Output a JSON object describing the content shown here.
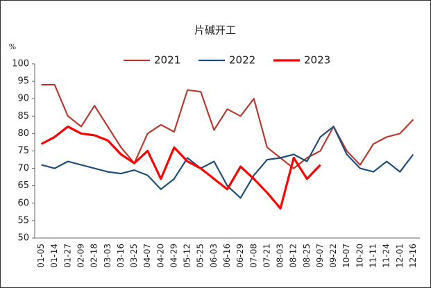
{
  "chart_data": {
    "type": "line",
    "title": "片碱开工",
    "y_unit": "%",
    "categories": [
      "01-05",
      "01-14",
      "01-27",
      "02-09",
      "02-18",
      "03-03",
      "03-16",
      "03-25",
      "04-07",
      "04-20",
      "04-29",
      "05-12",
      "05-25",
      "06-03",
      "06-16",
      "06-29",
      "07-08",
      "07-21",
      "08-03",
      "08-12",
      "08-25",
      "09-07",
      "09-22",
      "10-07",
      "10-20",
      "11-11",
      "11-24",
      "12-01",
      "12-16"
    ],
    "series": [
      {
        "name": "2021",
        "color": "#b83a32",
        "values": [
          94,
          94,
          85,
          82,
          88,
          82,
          76,
          71.5,
          80,
          82.5,
          80.5,
          92.5,
          92,
          81,
          87,
          85,
          90,
          76,
          73,
          70,
          73,
          75,
          82,
          75,
          71,
          77,
          79,
          80,
          84
        ]
      },
      {
        "name": "2022",
        "color": "#1f4e79",
        "values": [
          71,
          70,
          72,
          71,
          70,
          69,
          68.5,
          69.5,
          68,
          64,
          67,
          73,
          70,
          72,
          65,
          61.5,
          68,
          72.5,
          73,
          74,
          72,
          79,
          82,
          74,
          70,
          69,
          72,
          69,
          74
        ]
      },
      {
        "name": "2023",
        "color": "#ff0000",
        "values": [
          77,
          79,
          82,
          80,
          79.5,
          78,
          74,
          71.5,
          75,
          67,
          76,
          72,
          70,
          67,
          64,
          70.5,
          67,
          63,
          58.5,
          73,
          67,
          71,
          null,
          null,
          null,
          null,
          null,
          null,
          null
        ]
      }
    ],
    "ylim": [
      50,
      100
    ],
    "yticks": [
      50,
      55,
      60,
      65,
      70,
      75,
      80,
      85,
      90,
      95,
      100
    ],
    "grid": false
  }
}
